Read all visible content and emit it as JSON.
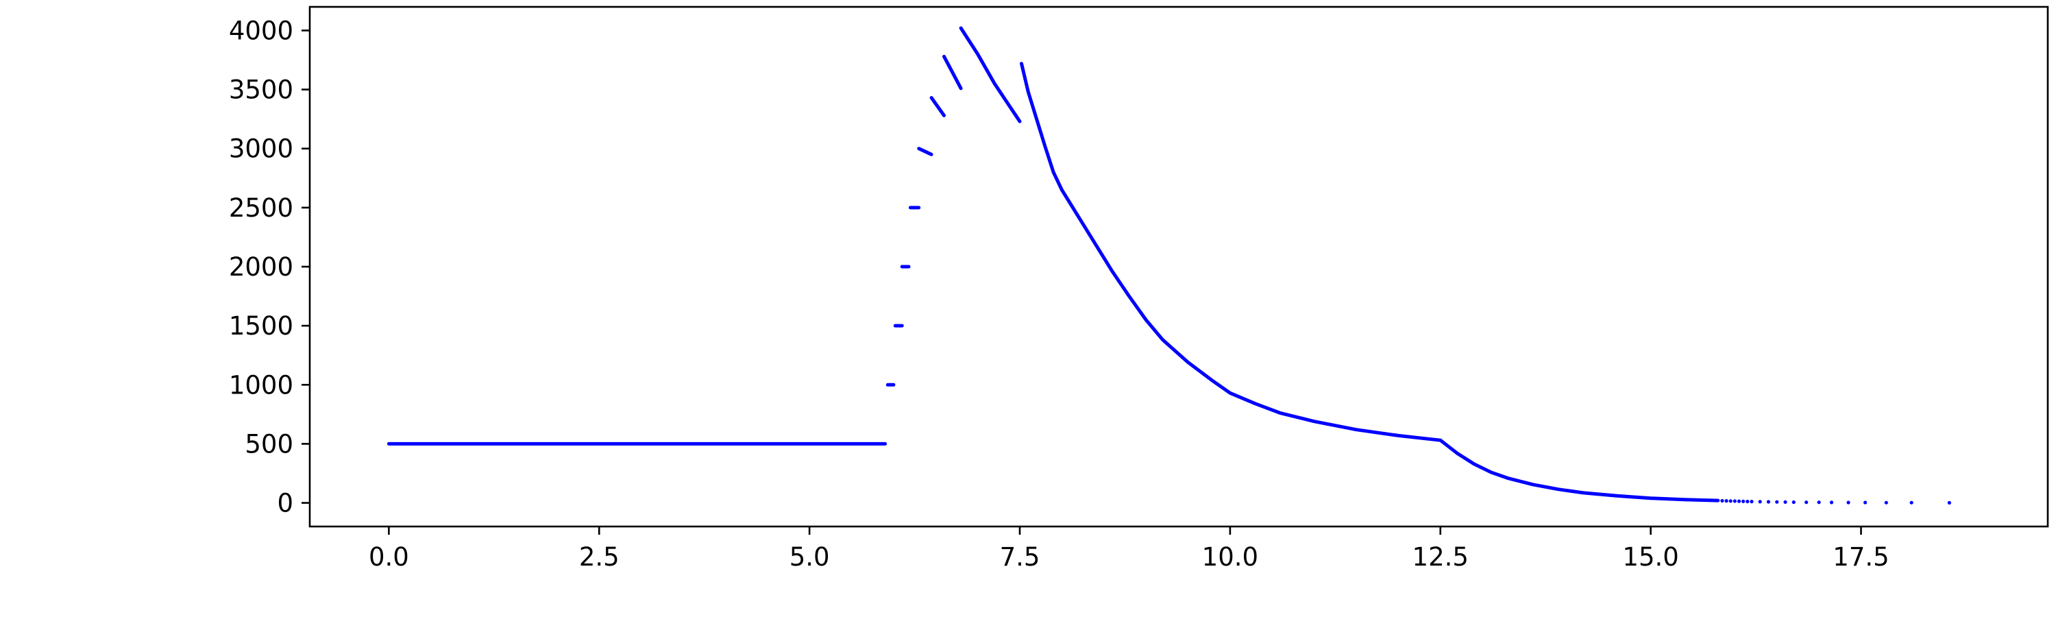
{
  "chart_data": {
    "type": "scatter",
    "title": "",
    "xlabel": "",
    "ylabel": "",
    "xlim": [
      -0.94,
      19.72
    ],
    "ylim": [
      -200,
      4200
    ],
    "grid": false,
    "legend": "none",
    "marker_color": "#0000ff",
    "x_ticks": [
      {
        "value": 0.0,
        "label": "0.0"
      },
      {
        "value": 2.5,
        "label": "2.5"
      },
      {
        "value": 5.0,
        "label": "5.0"
      },
      {
        "value": 7.5,
        "label": "7.5"
      },
      {
        "value": 10.0,
        "label": "10.0"
      },
      {
        "value": 12.5,
        "label": "12.5"
      },
      {
        "value": 15.0,
        "label": "15.0"
      },
      {
        "value": 17.5,
        "label": "17.5"
      }
    ],
    "y_ticks": [
      {
        "value": 0,
        "label": "0"
      },
      {
        "value": 500,
        "label": "500"
      },
      {
        "value": 1000,
        "label": "1000"
      },
      {
        "value": 1500,
        "label": "1500"
      },
      {
        "value": 2000,
        "label": "2000"
      },
      {
        "value": 2500,
        "label": "2500"
      },
      {
        "value": 3000,
        "label": "3000"
      },
      {
        "value": 3500,
        "label": "3500"
      },
      {
        "value": 4000,
        "label": "4000"
      }
    ],
    "series": [
      {
        "x": [
          0.0,
          5.9
        ],
        "y": [
          500,
          500
        ]
      },
      {
        "x": [
          5.93,
          6.0
        ],
        "y": [
          1000,
          1000
        ]
      },
      {
        "x": [
          6.02,
          6.1
        ],
        "y": [
          1500,
          1500
        ]
      },
      {
        "x": [
          6.1,
          6.18
        ],
        "y": [
          2000,
          2000
        ]
      },
      {
        "x": [
          6.2,
          6.3
        ],
        "y": [
          2500,
          2500
        ]
      },
      {
        "x": [
          6.3,
          6.45
        ],
        "y": [
          3000,
          2950
        ]
      },
      {
        "x": [
          6.45,
          6.6
        ],
        "y": [
          3430,
          3280
        ]
      },
      {
        "x": [
          6.6,
          6.8
        ],
        "y": [
          3780,
          3510
        ]
      },
      {
        "x": [
          6.8,
          7.0,
          7.2,
          7.5
        ],
        "y": [
          4020,
          3800,
          3550,
          3230
        ]
      },
      {
        "x": [
          7.52,
          7.6,
          7.7,
          7.8,
          7.9,
          8.0,
          8.2,
          8.4,
          8.6,
          8.8,
          9.0,
          9.2,
          9.5,
          9.8,
          10.0,
          10.3,
          10.6,
          11.0,
          11.5,
          12.0,
          12.5
        ],
        "y": [
          3720,
          3480,
          3250,
          3020,
          2800,
          2650,
          2420,
          2190,
          1960,
          1750,
          1550,
          1380,
          1190,
          1030,
          930,
          840,
          760,
          690,
          620,
          570,
          530
        ]
      },
      {
        "x": [
          12.5,
          12.7,
          12.9,
          13.1,
          13.3,
          13.6,
          13.9,
          14.2,
          14.6,
          15.0,
          15.4,
          15.8
        ],
        "y": [
          530,
          420,
          330,
          260,
          210,
          155,
          115,
          85,
          60,
          40,
          28,
          20
        ]
      },
      {
        "x": [
          15.85,
          15.9,
          15.95,
          16.0,
          16.05,
          16.1,
          16.15,
          16.2,
          16.3,
          16.4,
          16.5,
          16.6,
          16.7,
          16.85,
          17.0,
          17.15,
          17.35,
          17.55,
          17.8,
          18.1,
          18.55
        ],
        "y": [
          18,
          17,
          16,
          15,
          14,
          13,
          12,
          11,
          10,
          9,
          8,
          7,
          6,
          5,
          5,
          4,
          3,
          3,
          2,
          2,
          1
        ],
        "style": "points"
      }
    ]
  }
}
